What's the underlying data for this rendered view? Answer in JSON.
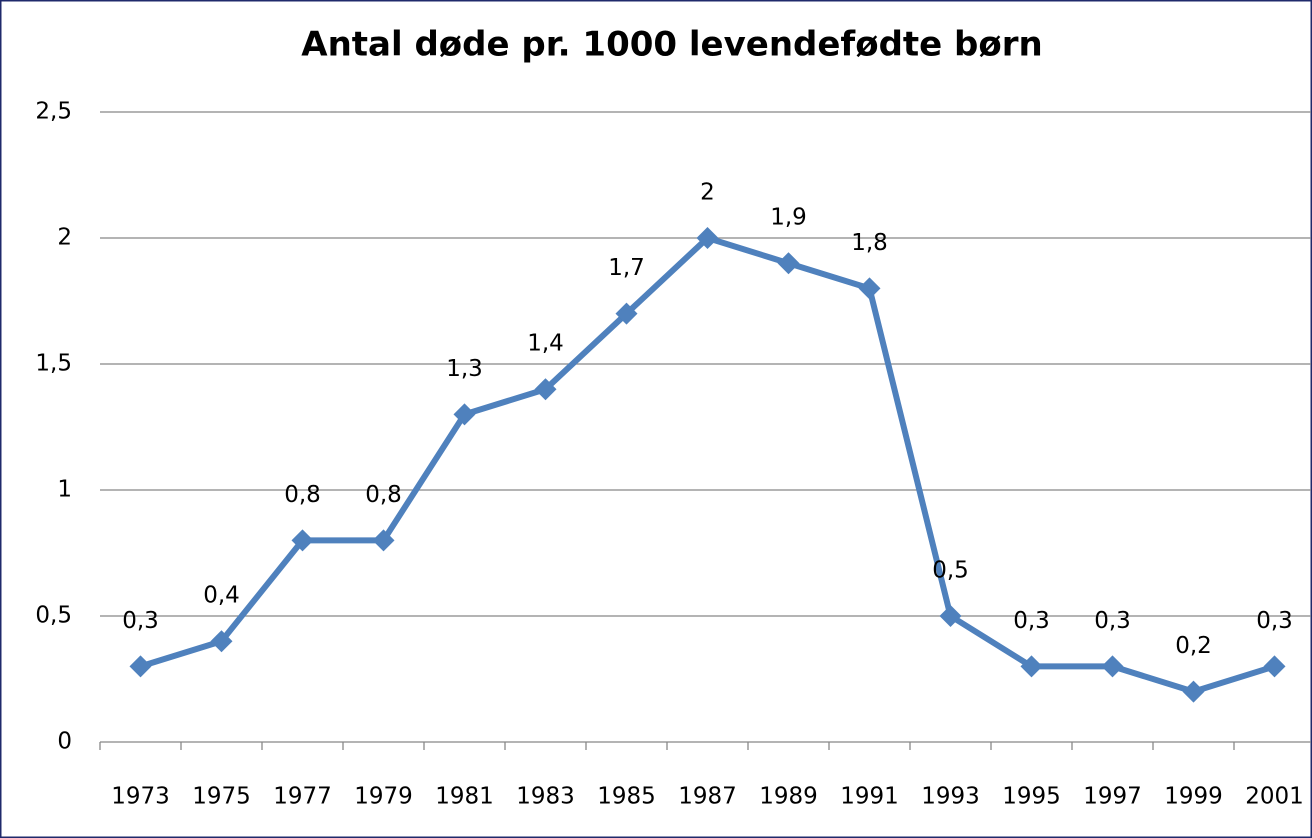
{
  "chart_data": {
    "type": "line",
    "title": "Antal døde pr. 1000 levendefødte børn",
    "categories": [
      "1973",
      "1975",
      "1977",
      "1979",
      "1981",
      "1983",
      "1985",
      "1987",
      "1989",
      "1991",
      "1993",
      "1995",
      "1997",
      "1999",
      "2001"
    ],
    "series": [
      {
        "name": "Antal døde pr. 1000 levendefødte børn",
        "color": "#4f81bd",
        "values": [
          0.3,
          0.4,
          0.8,
          0.8,
          1.3,
          1.4,
          1.7,
          2,
          1.9,
          1.8,
          0.5,
          0.3,
          0.3,
          0.2,
          0.3
        ],
        "value_labels": [
          "0,3",
          "0,4",
          "0,8",
          "0,8",
          "1,3",
          "1,4",
          "1,7",
          "2",
          "1,9",
          "1,8",
          "0,5",
          "0,3",
          "0,3",
          "0,2",
          "0,3"
        ]
      }
    ],
    "ylim": [
      0,
      2.5
    ],
    "yticks": [
      0,
      {
        "value": 0.5,
        "label": "0,5"
      },
      1,
      {
        "value": 1.5,
        "label": "1,5"
      },
      2,
      {
        "value": 2.5,
        "label": "2,5"
      }
    ],
    "grid": true
  }
}
